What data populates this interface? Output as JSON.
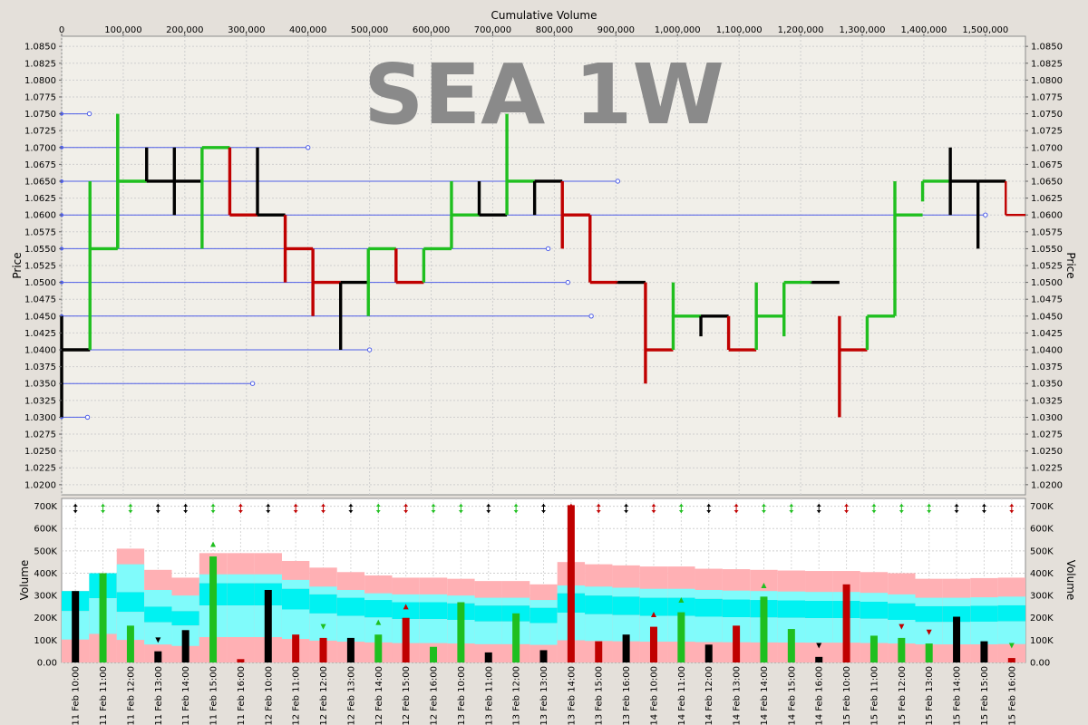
{
  "chart_data": {
    "type": "bar",
    "watermark": "SEA 1W",
    "top_axis_label": "Cumulative Volume",
    "price_axis_label": "Price",
    "volume_axis_label": "Volume",
    "cum_ticks": [
      "0",
      "100,000",
      "200,000",
      "300,000",
      "400,000",
      "500,000",
      "600,000",
      "700,000",
      "800,000",
      "900,000",
      "1,000,000",
      "1,100,000",
      "1,200,000",
      "1,300,000",
      "1,400,000",
      "1,500,000"
    ],
    "price_ticks": [
      "1.0850",
      "1.0825",
      "1.0800",
      "1.0775",
      "1.0750",
      "1.0725",
      "1.0700",
      "1.0675",
      "1.0650",
      "1.0625",
      "1.0600",
      "1.0575",
      "1.0550",
      "1.0525",
      "1.0500",
      "1.0475",
      "1.0450",
      "1.0425",
      "1.0400",
      "1.0375",
      "1.0350",
      "1.0325",
      "1.0300",
      "1.0275",
      "1.0250",
      "1.0225",
      "1.0200"
    ],
    "price_range": [
      1.0185,
      1.0865
    ],
    "cum_range": [
      0,
      1565000
    ],
    "volume_ticks": [
      "0.00",
      "100K",
      "200K",
      "300K",
      "400K",
      "500K",
      "600K",
      "700K"
    ],
    "volume_range": [
      0,
      735000
    ],
    "time_labels": [
      "11 Feb 10:00",
      "11 Feb 11:00",
      "11 Feb 12:00",
      "11 Feb 13:00",
      "11 Feb 14:00",
      "11 Feb 15:00",
      "11 Feb 16:00",
      "12 Feb 10:00",
      "12 Feb 11:00",
      "12 Feb 12:00",
      "12 Feb 13:00",
      "12 Feb 14:00",
      "12 Feb 15:00",
      "12 Feb 16:00",
      "13 Feb 10:00",
      "13 Feb 11:00",
      "13 Feb 12:00",
      "13 Feb 13:00",
      "13 Feb 14:00",
      "13 Feb 15:00",
      "13 Feb 16:00",
      "14 Feb 10:00",
      "14 Feb 11:00",
      "14 Feb 12:00",
      "14 Feb 13:00",
      "14 Feb 14:00",
      "14 Feb 15:00",
      "14 Feb 16:00",
      "15 Feb 10:00",
      "15 Feb 11:00",
      "15 Feb 12:00",
      "15 Feb 13:00",
      "15 Feb 14:00",
      "15 Feb 15:00",
      "15 Feb 16:00"
    ],
    "volumes": [
      320000,
      400000,
      165000,
      50000,
      145000,
      475000,
      15000,
      325000,
      125000,
      110000,
      110000,
      125000,
      200000,
      70000,
      270000,
      45000,
      220000,
      55000,
      705000,
      95000,
      125000,
      160000,
      225000,
      80000,
      165000,
      295000,
      150000,
      25000,
      350000,
      120000,
      110000,
      85000,
      205000,
      95000,
      20000
    ],
    "colors": [
      "black",
      "green",
      "green",
      "black",
      "black",
      "green",
      "red",
      "black",
      "red",
      "red",
      "black",
      "green",
      "red",
      "green",
      "green",
      "black",
      "green",
      "black",
      "red",
      "red",
      "black",
      "red",
      "green",
      "black",
      "red",
      "green",
      "green",
      "black",
      "red",
      "green",
      "green",
      "green",
      "black",
      "black",
      "red"
    ],
    "bands": [
      {
        "top": 320000,
        "c1": 320000,
        "c2": 320000
      },
      {
        "top": 400000,
        "c1": 400000,
        "c2": 400000
      },
      {
        "top": 510000,
        "c1": 440000,
        "c2": 315000
      },
      {
        "top": 415000,
        "c1": 325000,
        "c2": 250000
      },
      {
        "top": 380000,
        "c1": 300000,
        "c2": 230000
      },
      {
        "top": 490000,
        "c1": 395000,
        "c2": 355000
      },
      {
        "top": 490000,
        "c1": 395000,
        "c2": 355000
      },
      {
        "top": 490000,
        "c1": 395000,
        "c2": 355000
      },
      {
        "top": 455000,
        "c1": 370000,
        "c2": 330000
      },
      {
        "top": 425000,
        "c1": 340000,
        "c2": 305000
      },
      {
        "top": 405000,
        "c1": 325000,
        "c2": 290000
      },
      {
        "top": 390000,
        "c1": 310000,
        "c2": 280000
      },
      {
        "top": 380000,
        "c1": 305000,
        "c2": 270000
      },
      {
        "top": 380000,
        "c1": 305000,
        "c2": 270000
      },
      {
        "top": 375000,
        "c1": 300000,
        "c2": 265000
      },
      {
        "top": 365000,
        "c1": 290000,
        "c2": 255000
      },
      {
        "top": 365000,
        "c1": 290000,
        "c2": 255000
      },
      {
        "top": 350000,
        "c1": 280000,
        "c2": 245000
      },
      {
        "top": 450000,
        "c1": 345000,
        "c2": 310000
      },
      {
        "top": 440000,
        "c1": 340000,
        "c2": 300000
      },
      {
        "top": 435000,
        "c1": 335000,
        "c2": 295000
      },
      {
        "top": 430000,
        "c1": 330000,
        "c2": 290000
      },
      {
        "top": 430000,
        "c1": 330000,
        "c2": 290000
      },
      {
        "top": 420000,
        "c1": 325000,
        "c2": 285000
      },
      {
        "top": 418000,
        "c1": 322000,
        "c2": 282000
      },
      {
        "top": 415000,
        "c1": 320000,
        "c2": 280000
      },
      {
        "top": 412000,
        "c1": 318000,
        "c2": 278000
      },
      {
        "top": 410000,
        "c1": 316000,
        "c2": 276000
      },
      {
        "top": 410000,
        "c1": 316000,
        "c2": 276000
      },
      {
        "top": 405000,
        "c1": 312000,
        "c2": 272000
      },
      {
        "top": 400000,
        "c1": 305000,
        "c2": 265000
      },
      {
        "top": 375000,
        "c1": 290000,
        "c2": 252000
      },
      {
        "top": 375000,
        "c1": 290000,
        "c2": 252000
      },
      {
        "top": 378000,
        "c1": 292000,
        "c2": 254000
      },
      {
        "top": 380000,
        "c1": 295000,
        "c2": 256000
      }
    ],
    "triangle_markers": [
      {
        "i": 3,
        "y": 100000,
        "dir": "down",
        "color": "black"
      },
      {
        "i": 5,
        "y": 530000,
        "dir": "up",
        "color": "green"
      },
      {
        "i": 9,
        "y": 160000,
        "dir": "down",
        "color": "green"
      },
      {
        "i": 11,
        "y": 180000,
        "dir": "up",
        "color": "green"
      },
      {
        "i": 12,
        "y": 250000,
        "dir": "up",
        "color": "red"
      },
      {
        "i": 21,
        "y": 215000,
        "dir": "up",
        "color": "red"
      },
      {
        "i": 22,
        "y": 280000,
        "dir": "up",
        "color": "green"
      },
      {
        "i": 25,
        "y": 345000,
        "dir": "up",
        "color": "green"
      },
      {
        "i": 27,
        "y": 75000,
        "dir": "down",
        "color": "black"
      },
      {
        "i": 30,
        "y": 160000,
        "dir": "down",
        "color": "red"
      },
      {
        "i": 31,
        "y": 135000,
        "dir": "down",
        "color": "red"
      },
      {
        "i": 34,
        "y": 75000,
        "dir": "down",
        "color": "green"
      }
    ],
    "price_bars": [
      {
        "x0": 0,
        "x1": 46000,
        "high": 1.045,
        "low": 1.03,
        "close": 1.04,
        "color": "black"
      },
      {
        "x0": 46000,
        "x1": 91000,
        "high": 1.065,
        "low": 1.04,
        "close": 1.055,
        "color": "green"
      },
      {
        "x0": 91000,
        "x1": 138000,
        "high": 1.075,
        "low": 1.055,
        "close": 1.065,
        "color": "green"
      },
      {
        "x0": 138000,
        "x1": 183000,
        "high": 1.07,
        "low": 1.065,
        "close": 1.065,
        "color": "black"
      },
      {
        "x0": 183000,
        "x1": 228000,
        "high": 1.07,
        "low": 1.06,
        "close": 1.065,
        "color": "black"
      },
      {
        "x0": 228000,
        "x1": 273000,
        "high": 1.07,
        "low": 1.055,
        "close": 1.07,
        "color": "green"
      },
      {
        "x0": 273000,
        "x1": 318000,
        "high": 1.07,
        "low": 1.06,
        "close": 1.06,
        "color": "red"
      },
      {
        "x0": 318000,
        "x1": 363000,
        "high": 1.07,
        "low": 1.06,
        "close": 1.06,
        "color": "black"
      },
      {
        "x0": 363000,
        "x1": 408000,
        "high": 1.06,
        "low": 1.05,
        "close": 1.055,
        "color": "red"
      },
      {
        "x0": 408000,
        "x1": 453000,
        "high": 1.055,
        "low": 1.045,
        "close": 1.05,
        "color": "red"
      },
      {
        "x0": 453000,
        "x1": 498000,
        "high": 1.05,
        "low": 1.04,
        "close": 1.05,
        "color": "black"
      },
      {
        "x0": 498000,
        "x1": 543000,
        "high": 1.055,
        "low": 1.045,
        "close": 1.055,
        "color": "green"
      },
      {
        "x0": 543000,
        "x1": 588000,
        "high": 1.055,
        "low": 1.05,
        "close": 1.05,
        "color": "red"
      },
      {
        "x0": 588000,
        "x1": 633000,
        "high": 1.055,
        "low": 1.05,
        "close": 1.055,
        "color": "green"
      },
      {
        "x0": 633000,
        "x1": 678000,
        "high": 1.065,
        "low": 1.055,
        "close": 1.06,
        "color": "green"
      },
      {
        "x0": 678000,
        "x1": 723000,
        "high": 1.065,
        "low": 1.06,
        "close": 1.06,
        "color": "black"
      },
      {
        "x0": 723000,
        "x1": 768000,
        "high": 1.075,
        "low": 1.06,
        "close": 1.065,
        "color": "green"
      },
      {
        "x0": 768000,
        "x1": 813000,
        "high": 1.065,
        "low": 1.06,
        "close": 1.065,
        "color": "black"
      },
      {
        "x0": 813000,
        "x1": 858000,
        "high": 1.065,
        "low": 1.055,
        "close": 1.06,
        "color": "red"
      },
      {
        "x0": 858000,
        "x1": 903000,
        "high": 1.06,
        "low": 1.05,
        "close": 1.05,
        "color": "red"
      },
      {
        "x0": 903000,
        "x1": 948000,
        "high": 1.05,
        "low": 1.05,
        "close": 1.05,
        "color": "black"
      },
      {
        "x0": 948000,
        "x1": 993000,
        "high": 1.05,
        "low": 1.035,
        "close": 1.04,
        "color": "red"
      },
      {
        "x0": 993000,
        "x1": 1038000,
        "high": 1.05,
        "low": 1.04,
        "close": 1.045,
        "color": "green"
      },
      {
        "x0": 1038000,
        "x1": 1083000,
        "high": 1.045,
        "low": 1.042,
        "close": 1.045,
        "color": "black"
      },
      {
        "x0": 1083000,
        "x1": 1128000,
        "high": 1.045,
        "low": 1.04,
        "close": 1.04,
        "color": "red"
      },
      {
        "x0": 1128000,
        "x1": 1173000,
        "high": 1.05,
        "low": 1.04,
        "close": 1.045,
        "color": "green"
      },
      {
        "x0": 1173000,
        "x1": 1218000,
        "high": 1.05,
        "low": 1.042,
        "close": 1.05,
        "color": "green"
      },
      {
        "x0": 1218000,
        "x1": 1263000,
        "high": 1.05,
        "low": 1.05,
        "close": 1.05,
        "color": "black"
      },
      {
        "x0": 1263000,
        "x1": 1308000,
        "high": 1.045,
        "low": 1.03,
        "close": 1.04,
        "color": "red"
      },
      {
        "x0": 1308000,
        "x1": 1353000,
        "high": 1.045,
        "low": 1.04,
        "close": 1.045,
        "color": "green"
      },
      {
        "x0": 1353000,
        "x1": 1398000,
        "high": 1.065,
        "low": 1.045,
        "close": 1.06,
        "color": "green"
      },
      {
        "x0": 1398000,
        "x1": 1443000,
        "high": 1.065,
        "low": 1.062,
        "close": 1.065,
        "color": "green"
      },
      {
        "x0": 1443000,
        "x1": 1488000,
        "high": 1.07,
        "low": 1.06,
        "close": 1.065,
        "color": "black"
      },
      {
        "x0": 1488000,
        "x1": 1533000,
        "high": 1.065,
        "low": 1.055,
        "close": 1.065,
        "color": "black"
      },
      {
        "x0": 1533000,
        "x1": 1565000,
        "high": 1.065,
        "low": 1.06,
        "close": 1.06,
        "color": "red"
      }
    ],
    "volume_profile": [
      {
        "price": 1.075,
        "cum": 45000
      },
      {
        "price": 1.07,
        "cum": 400000
      },
      {
        "price": 1.065,
        "cum": 903000
      },
      {
        "price": 1.06,
        "cum": 1500000
      },
      {
        "price": 1.055,
        "cum": 790000
      },
      {
        "price": 1.05,
        "cum": 822000
      },
      {
        "price": 1.045,
        "cum": 860000
      },
      {
        "price": 1.04,
        "cum": 500000
      },
      {
        "price": 1.035,
        "cum": 310000
      },
      {
        "price": 1.03,
        "cum": 42000
      }
    ]
  }
}
